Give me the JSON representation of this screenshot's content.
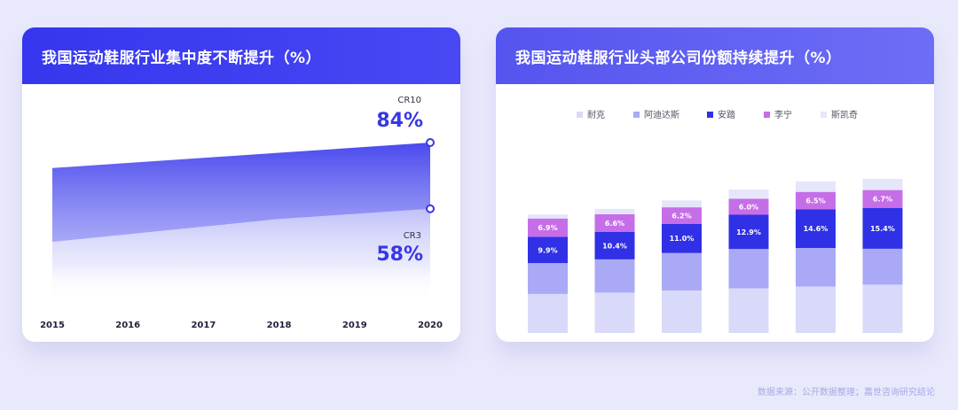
{
  "footer": {
    "source": "数据来源：公开数据整理；嘉世咨询研究结论"
  },
  "colors": {
    "accent": "#3737e6",
    "nike": "#d9d9f9",
    "adidas": "#a9a9f6",
    "anta": "#3030e6",
    "lining": "#c66ee8",
    "skechers": "#e6e6fb"
  },
  "chart_data": [
    {
      "type": "area",
      "title": "我国运动鞋服行业集中度不断提升（%）",
      "x": [
        "2015",
        "2016",
        "2017",
        "2018",
        "2019",
        "2020"
      ],
      "series": [
        {
          "name": "CR10",
          "values": [
            74,
            76,
            78,
            80,
            82,
            84
          ]
        },
        {
          "name": "CR3",
          "values": [
            45,
            48,
            51,
            54,
            56,
            58
          ]
        }
      ],
      "end_labels": [
        "84%",
        "58%"
      ],
      "ylim": [
        20,
        100
      ],
      "grid": false
    },
    {
      "type": "bar",
      "stacked": true,
      "title": "我国运动鞋服行业头部公司份额持续提升（%）",
      "categories": [
        "2015",
        "2016",
        "2017",
        "2018",
        "2019",
        "2020"
      ],
      "legend": {
        "placement": "top"
      },
      "series": [
        {
          "name": "耐克",
          "values": [
            14.7,
            15.2,
            16.0,
            16.8,
            17.5,
            18.2
          ],
          "labels": [
            "",
            "",
            "",
            "",
            "",
            ""
          ]
        },
        {
          "name": "阿迪达斯",
          "values": [
            11.6,
            12.5,
            14.1,
            14.8,
            14.5,
            13.5
          ],
          "labels": [
            "",
            "",
            "",
            "",
            "",
            ""
          ]
        },
        {
          "name": "安踏",
          "values": [
            9.9,
            10.4,
            11.0,
            12.9,
            14.6,
            15.4
          ],
          "labels": [
            "9.9%",
            "10.4%",
            "11.0%",
            "12.9%",
            "14.6%",
            "15.4%"
          ]
        },
        {
          "name": "李宁",
          "values": [
            6.9,
            6.6,
            6.2,
            6.0,
            6.5,
            6.7
          ],
          "labels": [
            "6.9%",
            "6.6%",
            "6.2%",
            "6.0%",
            "6.5%",
            "6.7%"
          ]
        },
        {
          "name": "斯凯奇",
          "values": [
            1.5,
            2.0,
            2.6,
            3.5,
            4.0,
            4.2
          ],
          "labels": [
            "",
            "",
            "",
            "",
            "",
            ""
          ]
        }
      ],
      "ylim": [
        0,
        60
      ],
      "grid": false
    }
  ]
}
